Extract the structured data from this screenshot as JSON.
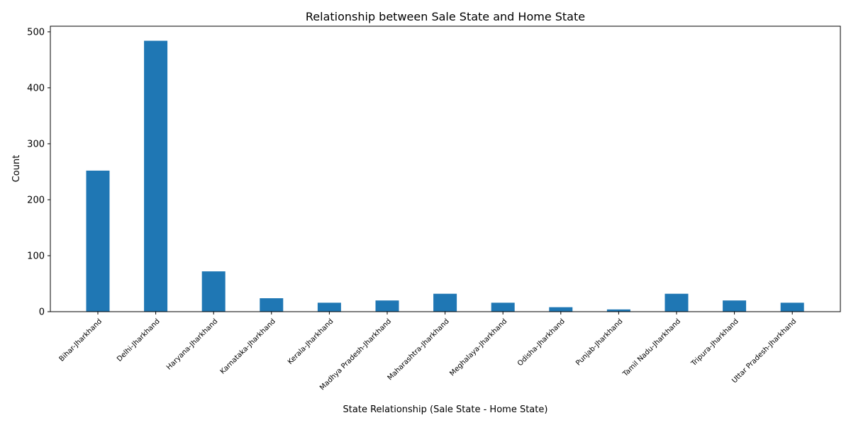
{
  "chart_data": {
    "type": "bar",
    "title": "Relationship between Sale State and Home State",
    "xlabel": "State Relationship (Sale State - Home State)",
    "ylabel": "Count",
    "categories": [
      "Bihar-Jharkhand",
      "Delhi-Jharkhand",
      "Haryana-Jharkhand",
      "Karnataka-Jharkhand",
      "Kerala-Jharkhand",
      "Madhya Pradesh-Jharkhand",
      "Maharashtra-Jharkhand",
      "Meghalaya-Jharkhand",
      "Odisha-Jharkhand",
      "Punjab-Jharkhand",
      "Tamil Nadu-Jharkhand",
      "Tripura-Jharkhand",
      "Uttar Pradesh-Jharkhand"
    ],
    "values": [
      252,
      484,
      72,
      24,
      16,
      20,
      32,
      16,
      8,
      4,
      32,
      20,
      16
    ],
    "yticks": [
      0,
      100,
      200,
      300,
      400,
      500
    ],
    "ylim": [
      0,
      510
    ],
    "bar_color": "#1f77b4",
    "grid": false,
    "legend": "none"
  }
}
